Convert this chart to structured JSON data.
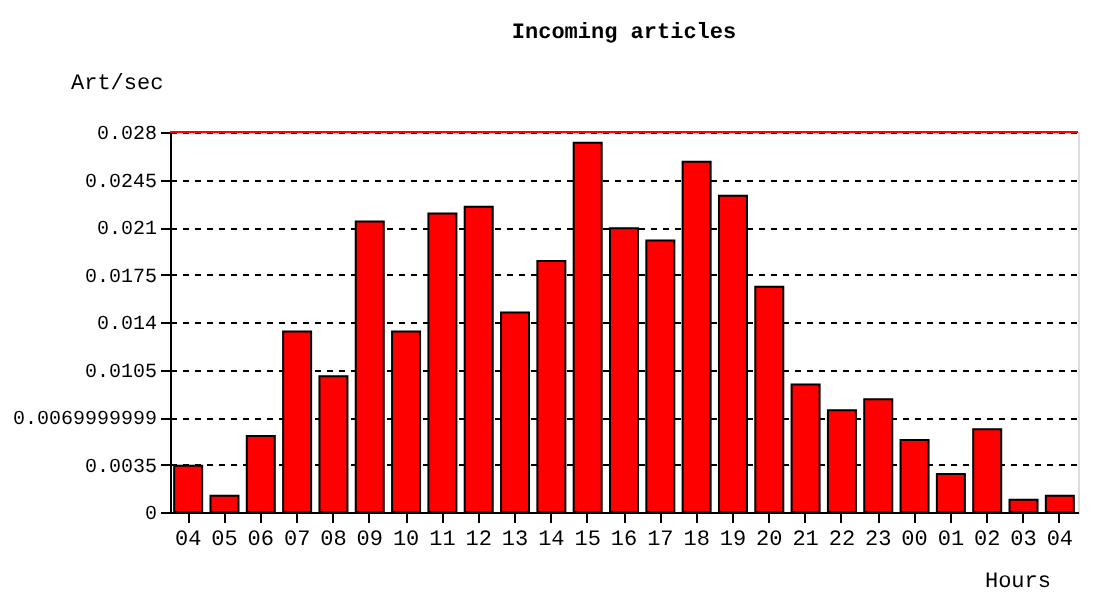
{
  "chart_data": {
    "type": "bar",
    "title": "Incoming articles",
    "xlabel": "Hours",
    "ylabel": "Art/sec",
    "categories": [
      "04",
      "05",
      "06",
      "07",
      "08",
      "09",
      "10",
      "11",
      "12",
      "13",
      "14",
      "15",
      "16",
      "17",
      "18",
      "19",
      "20",
      "21",
      "22",
      "23",
      "00",
      "01",
      "02",
      "03",
      "04"
    ],
    "series": [
      {
        "color": "#ff0000",
        "values": [
          0.0034,
          0.0012,
          0.0056,
          0.0133,
          0.01,
          0.0214,
          0.0133,
          0.022,
          0.0225,
          0.0147,
          0.0185,
          0.0272,
          0.0209,
          0.02,
          0.0258,
          0.0233,
          0.0166,
          0.0094,
          0.0075,
          0.0083,
          0.0053,
          0.0028,
          0.0061,
          0.0009,
          0.0012
        ]
      }
    ],
    "ylim": [
      0,
      0.028
    ],
    "yticks": [
      0,
      0.0035,
      0.0069999999,
      0.0105,
      0.014,
      0.0175,
      0.021,
      0.0245,
      0.028
    ],
    "ref_lines": [
      {
        "axis": "y",
        "value": 0.028,
        "color": "#ff0000"
      }
    ],
    "grid": "y"
  }
}
